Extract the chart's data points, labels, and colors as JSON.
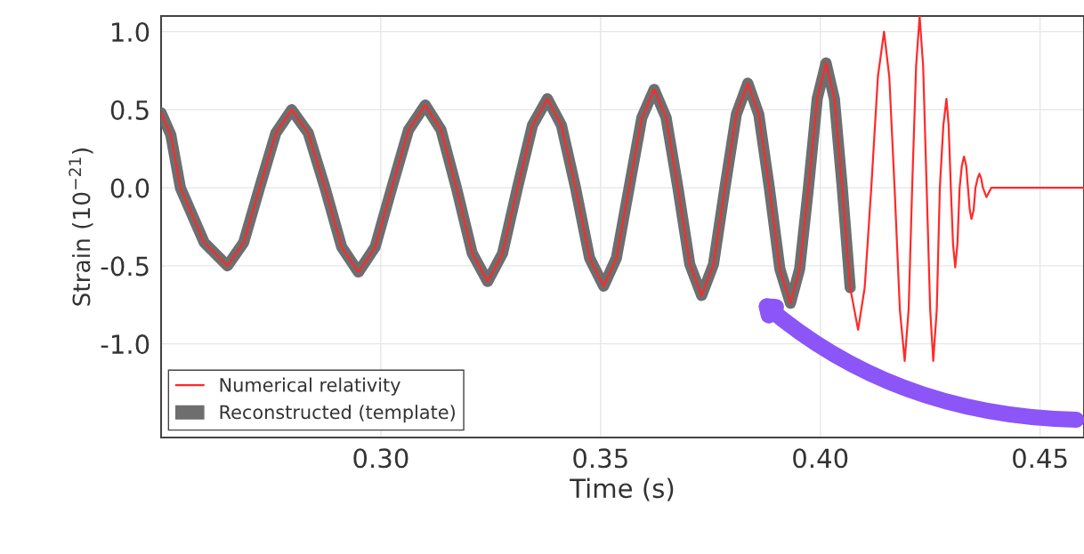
{
  "chart_data": {
    "type": "line",
    "xlabel": "Time (s)",
    "ylabel": "Strain (10$^{−21}$)",
    "xlim": [
      0.25,
      0.46
    ],
    "ylim": [
      -1.6,
      1.1
    ],
    "xticks": [
      {
        "value": 0.3,
        "label": "0.30"
      },
      {
        "value": 0.35,
        "label": "0.35"
      },
      {
        "value": 0.4,
        "label": "0.40"
      },
      {
        "value": 0.45,
        "label": "0.45"
      }
    ],
    "yticks": [
      {
        "value": -1.0,
        "label": "-1.0"
      },
      {
        "value": -0.5,
        "label": "-0.5"
      },
      {
        "value": 0.0,
        "label": "0.0"
      },
      {
        "value": 0.5,
        "label": "0.5"
      },
      {
        "value": 1.0,
        "label": "1.0"
      }
    ],
    "grid": true,
    "legend": "bottom left",
    "series": [
      {
        "name": "Numerical relativity",
        "color": "#ff2a2a",
        "x": [
          0.25,
          0.2522,
          0.2544,
          0.2598,
          0.2651,
          0.2688,
          0.2724,
          0.2761,
          0.2797,
          0.2835,
          0.2873,
          0.2911,
          0.2949,
          0.2987,
          0.3025,
          0.3063,
          0.3101,
          0.3137,
          0.3172,
          0.3208,
          0.3243,
          0.3277,
          0.3311,
          0.3345,
          0.3379,
          0.3411,
          0.3443,
          0.3475,
          0.3507,
          0.3536,
          0.3565,
          0.3594,
          0.3622,
          0.3649,
          0.3676,
          0.3703,
          0.373,
          0.3757,
          0.3783,
          0.3809,
          0.3835,
          0.386,
          0.3884,
          0.3908,
          0.3932,
          0.3953,
          0.3973,
          0.3993,
          0.4013,
          0.4032,
          0.405,
          0.4068,
          0.4086,
          0.4101,
          0.4116,
          0.4131,
          0.4145,
          0.4157,
          0.4169,
          0.4181,
          0.4192,
          0.4201,
          0.4209,
          0.4218,
          0.4226,
          0.4234,
          0.4242,
          0.425,
          0.4257,
          0.4265,
          0.4272,
          0.428,
          0.4287,
          0.4292,
          0.4297,
          0.4302,
          0.4307,
          0.4312,
          0.4317,
          0.4322,
          0.4327,
          0.4332,
          0.4336,
          0.434,
          0.4344,
          0.4349,
          0.4353,
          0.4358,
          0.4362,
          0.4366,
          0.437,
          0.4378,
          0.4389,
          0.46
        ],
        "values": [
          0.48,
          0.34,
          0,
          -0.35,
          -0.5,
          -0.35,
          0,
          0.35,
          0.5,
          0.35,
          0,
          -0.38,
          -0.54,
          -0.38,
          0,
          0.37,
          0.53,
          0.37,
          0,
          -0.42,
          -0.6,
          -0.42,
          0,
          0.4,
          0.57,
          0.4,
          0,
          -0.45,
          -0.63,
          -0.45,
          0,
          0.45,
          0.63,
          0.45,
          0,
          -0.49,
          -0.69,
          -0.49,
          0,
          0.47,
          0.67,
          0.47,
          0,
          -0.52,
          -0.74,
          -0.52,
          0,
          0.57,
          0.8,
          0.57,
          0,
          -0.64,
          -0.91,
          -0.64,
          0,
          0.71,
          1.0,
          0.71,
          0,
          -0.78,
          -1.11,
          -0.78,
          0,
          0.78,
          1.1,
          0.78,
          0,
          -0.78,
          -1.11,
          -0.78,
          0,
          0.4,
          0.57,
          0.4,
          0,
          -0.36,
          -0.51,
          -0.36,
          0,
          0.14,
          0.2,
          0.14,
          0,
          -0.14,
          -0.2,
          -0.14,
          0,
          0.06,
          0.09,
          0.06,
          0,
          -0.06,
          0,
          0
        ]
      },
      {
        "name": "Reconstructed (template)",
        "color": "#6e6e6e",
        "x": [
          0.25,
          0.2522,
          0.2544,
          0.2598,
          0.2651,
          0.2688,
          0.2724,
          0.2761,
          0.2797,
          0.2835,
          0.2873,
          0.2911,
          0.2949,
          0.2987,
          0.3025,
          0.3063,
          0.3101,
          0.3137,
          0.3172,
          0.3208,
          0.3243,
          0.3277,
          0.3311,
          0.3345,
          0.3379,
          0.3411,
          0.3443,
          0.3475,
          0.3507,
          0.3536,
          0.3565,
          0.3594,
          0.3622,
          0.3649,
          0.3676,
          0.3703,
          0.373,
          0.3757,
          0.3783,
          0.3809,
          0.3835,
          0.386,
          0.3884,
          0.3908,
          0.3932,
          0.3953,
          0.3973,
          0.3993,
          0.4013,
          0.4032,
          0.405,
          0.4068
        ],
        "values": [
          0.48,
          0.34,
          0,
          -0.35,
          -0.5,
          -0.35,
          0,
          0.35,
          0.5,
          0.35,
          0,
          -0.38,
          -0.54,
          -0.38,
          0,
          0.37,
          0.53,
          0.37,
          0,
          -0.42,
          -0.6,
          -0.42,
          0,
          0.4,
          0.57,
          0.4,
          0,
          -0.45,
          -0.63,
          -0.45,
          0,
          0.45,
          0.63,
          0.45,
          0,
          -0.49,
          -0.69,
          -0.49,
          0,
          0.47,
          0.67,
          0.47,
          0,
          -0.52,
          -0.74,
          -0.52,
          0,
          0.57,
          0.8,
          0.57,
          0,
          -0.64
        ]
      }
    ]
  }
}
